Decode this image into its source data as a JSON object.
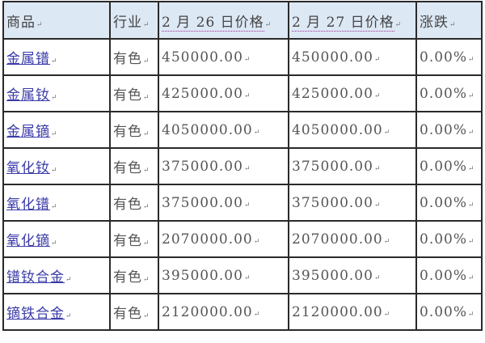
{
  "table": {
    "headers": [
      "商品",
      "行业",
      "2 月 26 日价格",
      "2 月 27 日价格",
      "涨跌"
    ],
    "rows": [
      {
        "product": "金属镨",
        "industry": "有色",
        "price_0226": "450000.00",
        "price_0227": "450000.00",
        "change": "0.00%"
      },
      {
        "product": "金属钕",
        "industry": "有色",
        "price_0226": "425000.00",
        "price_0227": "425000.00",
        "change": "0.00%"
      },
      {
        "product": "金属镝",
        "industry": "有色",
        "price_0226": "4050000.00",
        "price_0227": "4050000.00",
        "change": "0.00%"
      },
      {
        "product": "氧化钕",
        "industry": "有色",
        "price_0226": "375000.00",
        "price_0227": "375000.00",
        "change": "0.00%"
      },
      {
        "product": "氧化镨",
        "industry": "有色",
        "price_0226": "375000.00",
        "price_0227": "375000.00",
        "change": "0.00%"
      },
      {
        "product": "氧化镝",
        "industry": "有色",
        "price_0226": "2070000.00",
        "price_0227": "2070000.00",
        "change": "0.00%"
      },
      {
        "product": "镨钕合金",
        "industry": "有色",
        "price_0226": "395000.00",
        "price_0227": "395000.00",
        "change": "0.00%"
      },
      {
        "product": "镝铁合金",
        "industry": "有色",
        "price_0226": "2120000.00",
        "price_0227": "2120000.00",
        "change": "0.00%"
      }
    ]
  },
  "colors": {
    "header_bg": "#dde8f5",
    "link": "#3a3aa8",
    "border": "#2a2a2a"
  }
}
